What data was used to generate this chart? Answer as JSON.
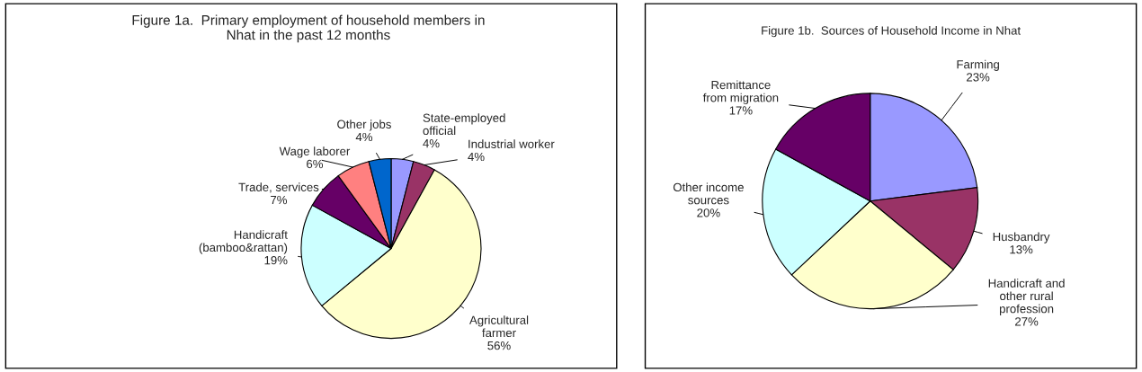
{
  "chart_data": [
    {
      "type": "pie",
      "title": "Figure 1a.  Primary employment of household members in\nNhat in the past 12 months",
      "categories": [
        "State-employed\nofficial",
        "Industrial worker",
        "Agricultural\nfarmer",
        "Handicraft\n(bamboo&rattan)",
        "Trade, services",
        "Wage laborer",
        "Other jobs"
      ],
      "values": [
        4,
        4,
        56,
        19,
        7,
        6,
        4
      ],
      "colors": [
        "#9999ff",
        "#993366",
        "#ffffcc",
        "#ccffff",
        "#660066",
        "#ff8080",
        "#0066cc"
      ],
      "value_labels": [
        "4%",
        "4%",
        "56%",
        "19%",
        "7%",
        "6%",
        "4%"
      ]
    },
    {
      "type": "pie",
      "title": "Figure 1b.  Sources of Household Income in Nhat",
      "categories": [
        "Farming",
        "Husbandry",
        "Handicraft and\nother rural\nprofession",
        "Other income\nsources",
        "Remittance\nfrom migration"
      ],
      "values": [
        23,
        13,
        27,
        20,
        17
      ],
      "colors": [
        "#9999ff",
        "#993366",
        "#ffffcc",
        "#ccffff",
        "#660066"
      ],
      "value_labels": [
        "23%",
        "13%",
        "27%",
        "20%",
        "17%"
      ]
    }
  ]
}
